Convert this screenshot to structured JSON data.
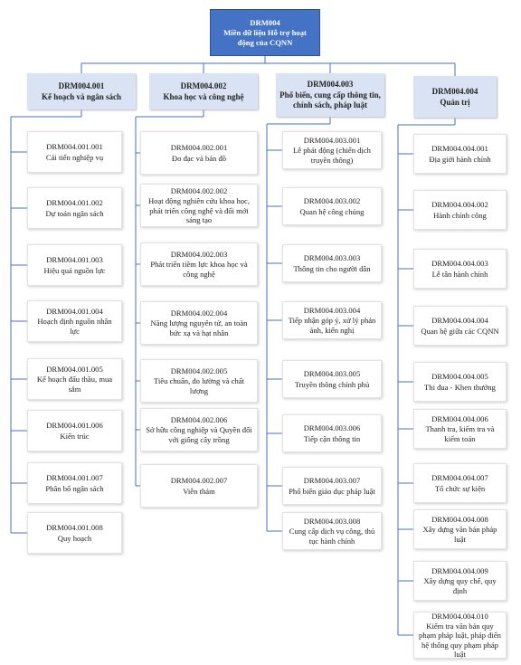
{
  "root": {
    "code": "DRM004",
    "label": "Miền dữ liệu Hỗ trợ hoạt động của CQNN"
  },
  "groups": [
    {
      "code": "DRM004.001",
      "label": "Kế hoạch và ngân sách",
      "children": [
        {
          "code": "DRM004.001.001",
          "label": "Cải tiến nghiệp vụ"
        },
        {
          "code": "DRM004.001.002",
          "label": "Dự toán ngân sách"
        },
        {
          "code": "DRM004.001.003",
          "label": "Hiệu quả nguồn lực"
        },
        {
          "code": "DRM004.001.004",
          "label": "Hoạch định nguồn nhân lực"
        },
        {
          "code": "DRM004.001.005",
          "label": "Kế hoạch đấu thầu, mua sắm"
        },
        {
          "code": "DRM004.001.006",
          "label": "Kiến trúc"
        },
        {
          "code": "DRM004.001.007",
          "label": "Phân bổ ngân sách"
        },
        {
          "code": "DRM004.001.008",
          "label": "Quy hoạch"
        }
      ]
    },
    {
      "code": "DRM004.002",
      "label": "Khoa học và công nghệ",
      "children": [
        {
          "code": "DRM004.002.001",
          "label": "Đo đạc và bản đồ"
        },
        {
          "code": "DRM004.002.002",
          "label": "Hoạt động nghiên cứu khoa học, phát triển công nghệ và đổi mới sáng tạo"
        },
        {
          "code": "DRM004.002.003",
          "label": "Phát triển tiềm lực khoa học và công nghệ"
        },
        {
          "code": "DRM004.002.004",
          "label": "Năng lượng nguyên tử, an toàn bức xạ và hạt nhân"
        },
        {
          "code": "DRM004.002.005",
          "label": "Tiêu chuẩn, đo lường và chất lượng"
        },
        {
          "code": "DRM004.002.006",
          "label": "Sở hữu công nghiệp và Quyền đối với giống cây trồng"
        },
        {
          "code": "DRM004.002.007",
          "label": "Viễn thám"
        }
      ]
    },
    {
      "code": "DRM004.003",
      "label": "Phổ biến, cung cấp thông tin, chính sách, pháp luật",
      "children": [
        {
          "code": "DRM004.003.001",
          "label": "Lễ phát động (chiến dịch truyền thông)"
        },
        {
          "code": "DRM004.003.002",
          "label": "Quan hệ công chúng"
        },
        {
          "code": "DRM004.003.003",
          "label": "Thông tin cho người dân"
        },
        {
          "code": "DRM004.003.004",
          "label": "Tiếp nhận góp ý, xử lý phản ánh, kiến nghị"
        },
        {
          "code": "DRM004.003.005",
          "label": "Truyền thông chính phủ"
        },
        {
          "code": "DRM004.003.006",
          "label": "Tiếp cận thông tin"
        },
        {
          "code": "DRM004.003.007",
          "label": "Phổ biến giáo dục pháp luật"
        },
        {
          "code": "DRM004.003.008",
          "label": "Cung cấp dịch vụ công, thủ tục hành chính"
        }
      ]
    },
    {
      "code": "DRM004.004",
      "label": "Quản trị",
      "children": [
        {
          "code": "DRM004.004.001",
          "label": "Địa giới hành chính"
        },
        {
          "code": "DRM004.004.002",
          "label": "Hành chính công"
        },
        {
          "code": "DRM004.004.003",
          "label": "Lễ tân hành chính"
        },
        {
          "code": "DRM004.004.004",
          "label": "Quan hệ giữa các CQNN"
        },
        {
          "code": "DRM004.004.005",
          "label": "Thi đua - Khen thưởng"
        },
        {
          "code": "DRM004.004.006",
          "label": "Thanh tra, kiểm tra và kiểm toán"
        },
        {
          "code": "DRM004.004.007",
          "label": "Tổ chức sự kiện"
        },
        {
          "code": "DRM004.004.008",
          "label": "Xây dựng văn bản pháp luật"
        },
        {
          "code": "DRM004.004.009",
          "label": "Xây dựng quy chế, quy định"
        },
        {
          "code": "DRM004.004.010",
          "label": "Kiểm tra văn bản quy phạm pháp luật, pháp điển hệ thống quy phạm pháp luật"
        }
      ]
    }
  ]
}
